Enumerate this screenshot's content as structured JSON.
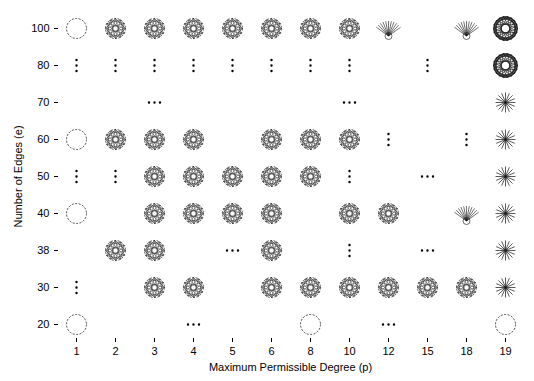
{
  "chart_data": {
    "type": "scatter",
    "x_label": "Maximum Permissible Degree (p)",
    "y_label": "Number of Edges (e)",
    "x_categories": [
      1,
      2,
      3,
      4,
      5,
      6,
      8,
      10,
      12,
      15,
      18,
      19
    ],
    "y_categories": [
      100,
      80,
      70,
      60,
      50,
      40,
      38,
      30,
      20
    ],
    "points": [
      {
        "p": 1,
        "e": 100,
        "marker": "empty_circle"
      },
      {
        "p": 2,
        "e": 100,
        "marker": "graph"
      },
      {
        "p": 3,
        "e": 100,
        "marker": "graph"
      },
      {
        "p": 4,
        "e": 100,
        "marker": "graph"
      },
      {
        "p": 5,
        "e": 100,
        "marker": "graph"
      },
      {
        "p": 6,
        "e": 100,
        "marker": "graph"
      },
      {
        "p": 8,
        "e": 100,
        "marker": "graph"
      },
      {
        "p": 10,
        "e": 100,
        "marker": "graph"
      },
      {
        "p": 12,
        "e": 100,
        "marker": "fan"
      },
      {
        "p": 18,
        "e": 100,
        "marker": "fan"
      },
      {
        "p": 19,
        "e": 100,
        "marker": "dense_graph"
      },
      {
        "p": 1,
        "e": 80,
        "marker": "vdots"
      },
      {
        "p": 2,
        "e": 80,
        "marker": "vdots"
      },
      {
        "p": 3,
        "e": 80,
        "marker": "vdots"
      },
      {
        "p": 4,
        "e": 80,
        "marker": "vdots"
      },
      {
        "p": 5,
        "e": 80,
        "marker": "vdots"
      },
      {
        "p": 6,
        "e": 80,
        "marker": "vdots"
      },
      {
        "p": 8,
        "e": 80,
        "marker": "vdots"
      },
      {
        "p": 10,
        "e": 80,
        "marker": "vdots"
      },
      {
        "p": 15,
        "e": 80,
        "marker": "vdots"
      },
      {
        "p": 19,
        "e": 80,
        "marker": "dense_graph"
      },
      {
        "p": 3,
        "e": 70,
        "marker": "hdots"
      },
      {
        "p": 10,
        "e": 70,
        "marker": "hdots"
      },
      {
        "p": 19,
        "e": 70,
        "marker": "star"
      },
      {
        "p": 1,
        "e": 60,
        "marker": "empty_circle"
      },
      {
        "p": 2,
        "e": 60,
        "marker": "graph"
      },
      {
        "p": 3,
        "e": 60,
        "marker": "graph"
      },
      {
        "p": 4,
        "e": 60,
        "marker": "graph"
      },
      {
        "p": 6,
        "e": 60,
        "marker": "graph"
      },
      {
        "p": 8,
        "e": 60,
        "marker": "graph"
      },
      {
        "p": 10,
        "e": 60,
        "marker": "graph"
      },
      {
        "p": 12,
        "e": 60,
        "marker": "vdots"
      },
      {
        "p": 18,
        "e": 60,
        "marker": "vdots"
      },
      {
        "p": 19,
        "e": 60,
        "marker": "star"
      },
      {
        "p": 1,
        "e": 50,
        "marker": "vdots"
      },
      {
        "p": 2,
        "e": 50,
        "marker": "vdots"
      },
      {
        "p": 3,
        "e": 50,
        "marker": "graph"
      },
      {
        "p": 4,
        "e": 50,
        "marker": "graph"
      },
      {
        "p": 5,
        "e": 50,
        "marker": "graph"
      },
      {
        "p": 6,
        "e": 50,
        "marker": "graph"
      },
      {
        "p": 8,
        "e": 50,
        "marker": "graph"
      },
      {
        "p": 10,
        "e": 50,
        "marker": "vdots"
      },
      {
        "p": 15,
        "e": 50,
        "marker": "hdots"
      },
      {
        "p": 19,
        "e": 50,
        "marker": "star"
      },
      {
        "p": 1,
        "e": 40,
        "marker": "empty_circle"
      },
      {
        "p": 3,
        "e": 40,
        "marker": "graph"
      },
      {
        "p": 4,
        "e": 40,
        "marker": "graph"
      },
      {
        "p": 5,
        "e": 40,
        "marker": "graph"
      },
      {
        "p": 6,
        "e": 40,
        "marker": "graph"
      },
      {
        "p": 10,
        "e": 40,
        "marker": "graph"
      },
      {
        "p": 12,
        "e": 40,
        "marker": "graph"
      },
      {
        "p": 18,
        "e": 40,
        "marker": "fan"
      },
      {
        "p": 19,
        "e": 40,
        "marker": "star"
      },
      {
        "p": 2,
        "e": 38,
        "marker": "graph"
      },
      {
        "p": 3,
        "e": 38,
        "marker": "graph"
      },
      {
        "p": 5,
        "e": 38,
        "marker": "hdots"
      },
      {
        "p": 6,
        "e": 38,
        "marker": "graph"
      },
      {
        "p": 10,
        "e": 38,
        "marker": "vdots"
      },
      {
        "p": 15,
        "e": 38,
        "marker": "hdots"
      },
      {
        "p": 19,
        "e": 38,
        "marker": "star"
      },
      {
        "p": 1,
        "e": 30,
        "marker": "vdots"
      },
      {
        "p": 3,
        "e": 30,
        "marker": "graph"
      },
      {
        "p": 4,
        "e": 30,
        "marker": "graph"
      },
      {
        "p": 6,
        "e": 30,
        "marker": "graph"
      },
      {
        "p": 8,
        "e": 30,
        "marker": "graph"
      },
      {
        "p": 10,
        "e": 30,
        "marker": "graph"
      },
      {
        "p": 12,
        "e": 30,
        "marker": "graph"
      },
      {
        "p": 15,
        "e": 30,
        "marker": "graph"
      },
      {
        "p": 18,
        "e": 30,
        "marker": "graph"
      },
      {
        "p": 19,
        "e": 30,
        "marker": "star"
      },
      {
        "p": 1,
        "e": 20,
        "marker": "empty_circle"
      },
      {
        "p": 4,
        "e": 20,
        "marker": "hdots"
      },
      {
        "p": 8,
        "e": 20,
        "marker": "empty_circle"
      },
      {
        "p": 12,
        "e": 20,
        "marker": "hdots"
      },
      {
        "p": 19,
        "e": 20,
        "marker": "empty_circle"
      }
    ]
  }
}
